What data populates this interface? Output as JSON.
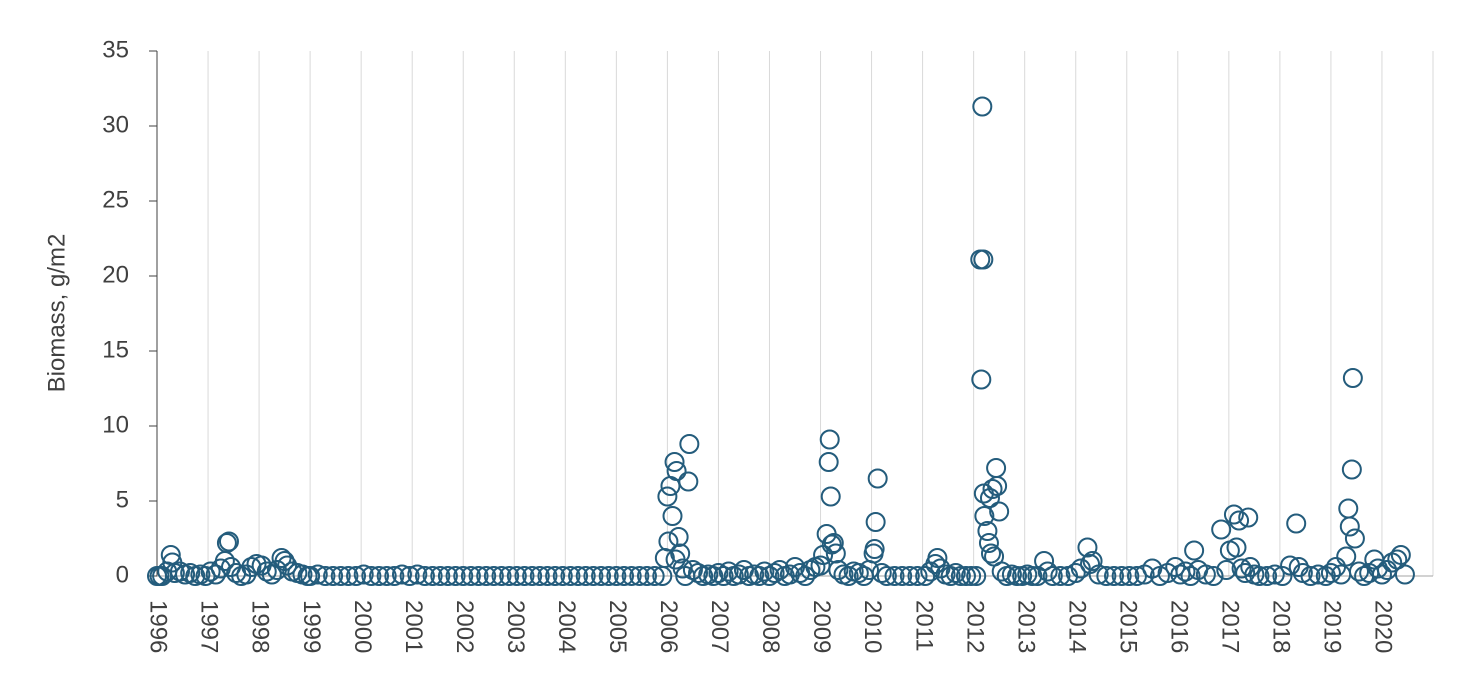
{
  "chart_data": {
    "type": "scatter",
    "y_label": "Biomass, g/m2",
    "color": "#245c7c",
    "xgrid": true,
    "xlim": [
      1996,
      2021
    ],
    "xticks": [
      1996,
      1997,
      1998,
      1999,
      2000,
      2001,
      2002,
      2003,
      2004,
      2005,
      2006,
      2007,
      2008,
      2009,
      2010,
      2011,
      2012,
      2013,
      2014,
      2015,
      2016,
      2017,
      2018,
      2019,
      2020
    ],
    "ylim": [
      0,
      35
    ],
    "yticks": [
      0,
      5,
      10,
      15,
      20,
      25,
      30,
      35
    ],
    "x": [
      1996.0,
      1996.05,
      1996.1,
      1996.2,
      1996.27,
      1996.3,
      1996.35,
      1996.45,
      1996.55,
      1996.65,
      1996.75,
      1996.85,
      1996.95,
      1997.05,
      1997.15,
      1997.25,
      1997.33,
      1997.37,
      1997.41,
      1997.45,
      1997.55,
      1997.65,
      1997.75,
      1997.85,
      1997.95,
      1998.05,
      1998.15,
      1998.25,
      1998.35,
      1998.44,
      1998.5,
      1998.55,
      1998.65,
      1998.75,
      1998.85,
      1998.95,
      1999.0,
      1999.15,
      1999.3,
      1999.45,
      1999.6,
      1999.75,
      1999.9,
      2000.05,
      2000.2,
      2000.35,
      2000.5,
      2000.65,
      2000.8,
      2000.95,
      2001.1,
      2001.25,
      2001.4,
      2001.55,
      2001.7,
      2001.85,
      2002.0,
      2002.15,
      2002.3,
      2002.45,
      2002.6,
      2002.75,
      2002.9,
      2003.05,
      2003.2,
      2003.35,
      2003.5,
      2003.65,
      2003.8,
      2003.95,
      2004.1,
      2004.25,
      2004.4,
      2004.55,
      2004.7,
      2004.85,
      2005.0,
      2005.15,
      2005.3,
      2005.45,
      2005.6,
      2005.75,
      2005.9,
      2005.95,
      2006.0,
      2006.02,
      2006.06,
      2006.1,
      2006.14,
      2006.16,
      2006.18,
      2006.22,
      2006.25,
      2006.3,
      2006.35,
      2006.41,
      2006.43,
      2006.5,
      2006.6,
      2006.7,
      2006.8,
      2006.9,
      2007.0,
      2007.1,
      2007.2,
      2007.3,
      2007.4,
      2007.5,
      2007.6,
      2007.7,
      2007.8,
      2007.9,
      2008.0,
      2008.1,
      2008.2,
      2008.3,
      2008.4,
      2008.5,
      2008.6,
      2008.7,
      2008.8,
      2008.9,
      2009.0,
      2009.05,
      2009.12,
      2009.16,
      2009.18,
      2009.2,
      2009.22,
      2009.26,
      2009.3,
      2009.35,
      2009.45,
      2009.55,
      2009.65,
      2009.75,
      2009.85,
      2009.95,
      2010.04,
      2010.06,
      2010.08,
      2010.12,
      2010.2,
      2010.3,
      2010.45,
      2010.6,
      2010.75,
      2010.9,
      2011.05,
      2011.15,
      2011.25,
      2011.29,
      2011.35,
      2011.45,
      2011.55,
      2011.65,
      2011.75,
      2011.85,
      2011.95,
      2012.05,
      2012.13,
      2012.15,
      2012.17,
      2012.19,
      2012.2,
      2012.21,
      2012.27,
      2012.3,
      2012.32,
      2012.34,
      2012.37,
      2012.4,
      2012.44,
      2012.46,
      2012.5,
      2012.55,
      2012.65,
      2012.75,
      2012.85,
      2012.95,
      2013.05,
      2013.15,
      2013.25,
      2013.38,
      2013.45,
      2013.55,
      2013.7,
      2013.85,
      2014.0,
      2014.1,
      2014.23,
      2014.28,
      2014.33,
      2014.45,
      2014.6,
      2014.75,
      2014.9,
      2015.05,
      2015.2,
      2015.35,
      2015.5,
      2015.65,
      2015.8,
      2015.95,
      2016.05,
      2016.15,
      2016.25,
      2016.32,
      2016.4,
      2016.55,
      2016.7,
      2016.85,
      2016.95,
      2017.02,
      2017.1,
      2017.15,
      2017.2,
      2017.25,
      2017.32,
      2017.38,
      2017.42,
      2017.5,
      2017.6,
      2017.75,
      2017.9,
      2018.05,
      2018.2,
      2018.32,
      2018.37,
      2018.45,
      2018.6,
      2018.75,
      2018.9,
      2019.0,
      2019.1,
      2019.2,
      2019.3,
      2019.34,
      2019.37,
      2019.41,
      2019.43,
      2019.47,
      2019.55,
      2019.65,
      2019.75,
      2019.85,
      2019.92,
      2020.0,
      2020.1,
      2020.2,
      2020.3,
      2020.37,
      2020.45
    ],
    "values": [
      0,
      0,
      0,
      0.3,
      1.4,
      0.9,
      0.2,
      0.3,
      0.1,
      0.2,
      0,
      0.1,
      0,
      0.3,
      0.1,
      0.5,
      1.0,
      2.2,
      2.3,
      0.6,
      0.2,
      0,
      0.1,
      0.6,
      0.8,
      0.7,
      0.3,
      0.1,
      0.4,
      1.2,
      1.0,
      0.7,
      0.3,
      0.2,
      0.1,
      0,
      0,
      0.1,
      0,
      0,
      0,
      0,
      0,
      0.1,
      0,
      0,
      0,
      0,
      0.1,
      0,
      0.1,
      0,
      0,
      0,
      0,
      0,
      0,
      0,
      0,
      0,
      0,
      0,
      0,
      0,
      0,
      0,
      0,
      0,
      0,
      0,
      0,
      0,
      0,
      0,
      0,
      0,
      0,
      0,
      0,
      0,
      0,
      0,
      0,
      1.2,
      5.3,
      2.3,
      6.0,
      4.0,
      7.6,
      1.1,
      7.0,
      2.6,
      1.5,
      0.5,
      0,
      6.3,
      8.8,
      0.4,
      0.2,
      0,
      0.1,
      0,
      0.2,
      0,
      0.3,
      0,
      0.1,
      0.4,
      0,
      0.1,
      0,
      0.3,
      0,
      0.2,
      0.4,
      0,
      0.1,
      0.6,
      0.2,
      0,
      0.4,
      0.6,
      0.7,
      1.4,
      2.8,
      7.6,
      9.1,
      5.3,
      2.1,
      2.2,
      1.5,
      0.4,
      0.1,
      0,
      0.3,
      0.2,
      0,
      0.4,
      1.5,
      1.8,
      3.6,
      6.5,
      0.2,
      0,
      0,
      0,
      0,
      0,
      0,
      0.3,
      0.8,
      1.2,
      0.5,
      0.1,
      0,
      0.2,
      0,
      0,
      0,
      0,
      21.1,
      13.1,
      31.3,
      21.1,
      5.5,
      4.0,
      3.0,
      2.2,
      5.2,
      1.5,
      5.8,
      1.3,
      7.2,
      6.0,
      4.3,
      0.3,
      0,
      0.1,
      0,
      0,
      0.1,
      0,
      0,
      1.0,
      0.3,
      0,
      0,
      0,
      0.2,
      0.5,
      1.9,
      0.8,
      1.0,
      0.1,
      0,
      0,
      0,
      0,
      0,
      0.1,
      0.5,
      0,
      0.2,
      0.6,
      0.1,
      0.3,
      0,
      1.7,
      0.4,
      0.1,
      0,
      3.1,
      0.4,
      1.7,
      4.1,
      1.9,
      3.7,
      0.5,
      0.2,
      3.9,
      0.6,
      0.1,
      0,
      0,
      0.1,
      0,
      0.7,
      3.5,
      0.6,
      0.2,
      0,
      0.1,
      0,
      0.2,
      0.6,
      0.1,
      1.3,
      4.5,
      3.3,
      7.1,
      13.2,
      2.5,
      0.3,
      0,
      0.2,
      1.1,
      0.5,
      0.1,
      0.4,
      0.9,
      1.1,
      1.4,
      0.1
    ]
  }
}
